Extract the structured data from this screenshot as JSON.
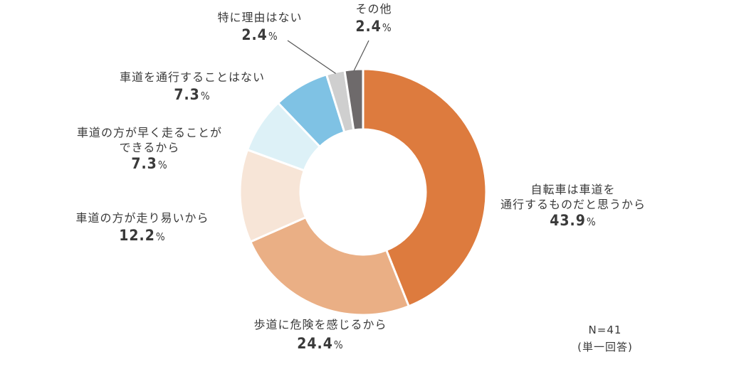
{
  "chart_data": {
    "type": "pie",
    "donut": true,
    "categories": [
      "自転車は車道を通行するものだと思うから",
      "歩道に危険を感じるから",
      "車道の方が走り易いから",
      "車道の方が早く走ることができるから",
      "車道を通行することはない",
      "特に理由はない",
      "その他"
    ],
    "values": [
      43.9,
      24.4,
      12.2,
      7.3,
      7.3,
      2.4,
      2.4
    ],
    "colors": [
      "#dd7b3e",
      "#eaaf85",
      "#f7e5d7",
      "#ddf1f7",
      "#7fc2e4",
      "#cfcfcf",
      "#6e6a6b"
    ],
    "labels": [
      {
        "lines": [
          "自転車は車道を",
          "通行するものだと思うから"
        ],
        "pct": "43.9",
        "unit": "%"
      },
      {
        "lines": [
          "歩道に危険を感じるから"
        ],
        "pct": "24.4",
        "unit": "%"
      },
      {
        "lines": [
          "車道の方が走り易いから"
        ],
        "pct": "12.2",
        "unit": "%"
      },
      {
        "lines": [
          "車道の方が早く走ることが",
          "できるから"
        ],
        "pct": "7.3",
        "unit": "%"
      },
      {
        "lines": [
          "車道を通行することはない"
        ],
        "pct": "7.3",
        "unit": "%"
      },
      {
        "lines": [
          "特に理由はない"
        ],
        "pct": "2.4",
        "unit": "%"
      },
      {
        "lines": [
          "その他"
        ],
        "pct": "2.4",
        "unit": "%"
      }
    ]
  },
  "note": {
    "n": "N=41",
    "type": "(単一回答)"
  }
}
